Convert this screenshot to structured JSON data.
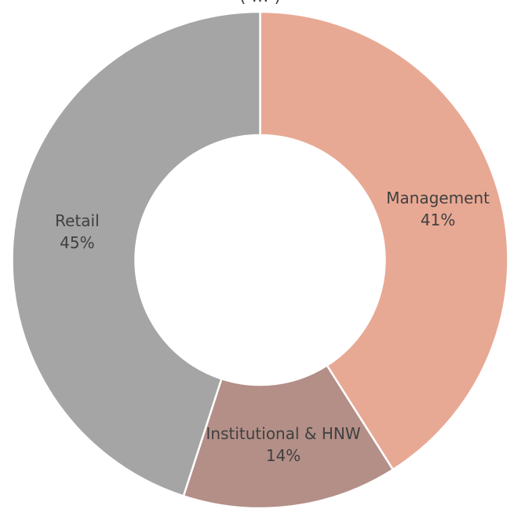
{
  "chart_data": {
    "type": "pie",
    "subtype": "donut",
    "title": "",
    "partial_title_visible": "( … )",
    "slices": [
      {
        "label": "Management",
        "value": 41,
        "value_label": "41%",
        "color": "#e8a994"
      },
      {
        "label": "Institutional & HNW",
        "value": 14,
        "value_label": "14%",
        "color": "#b38f87"
      },
      {
        "label": "Retail",
        "value": 45,
        "value_label": "45%",
        "color": "#a5a5a5"
      }
    ],
    "start_angle_deg": 0,
    "direction": "clockwise",
    "slice_border_color": "#ffffff",
    "legend": "none",
    "labels": "on-slice"
  }
}
